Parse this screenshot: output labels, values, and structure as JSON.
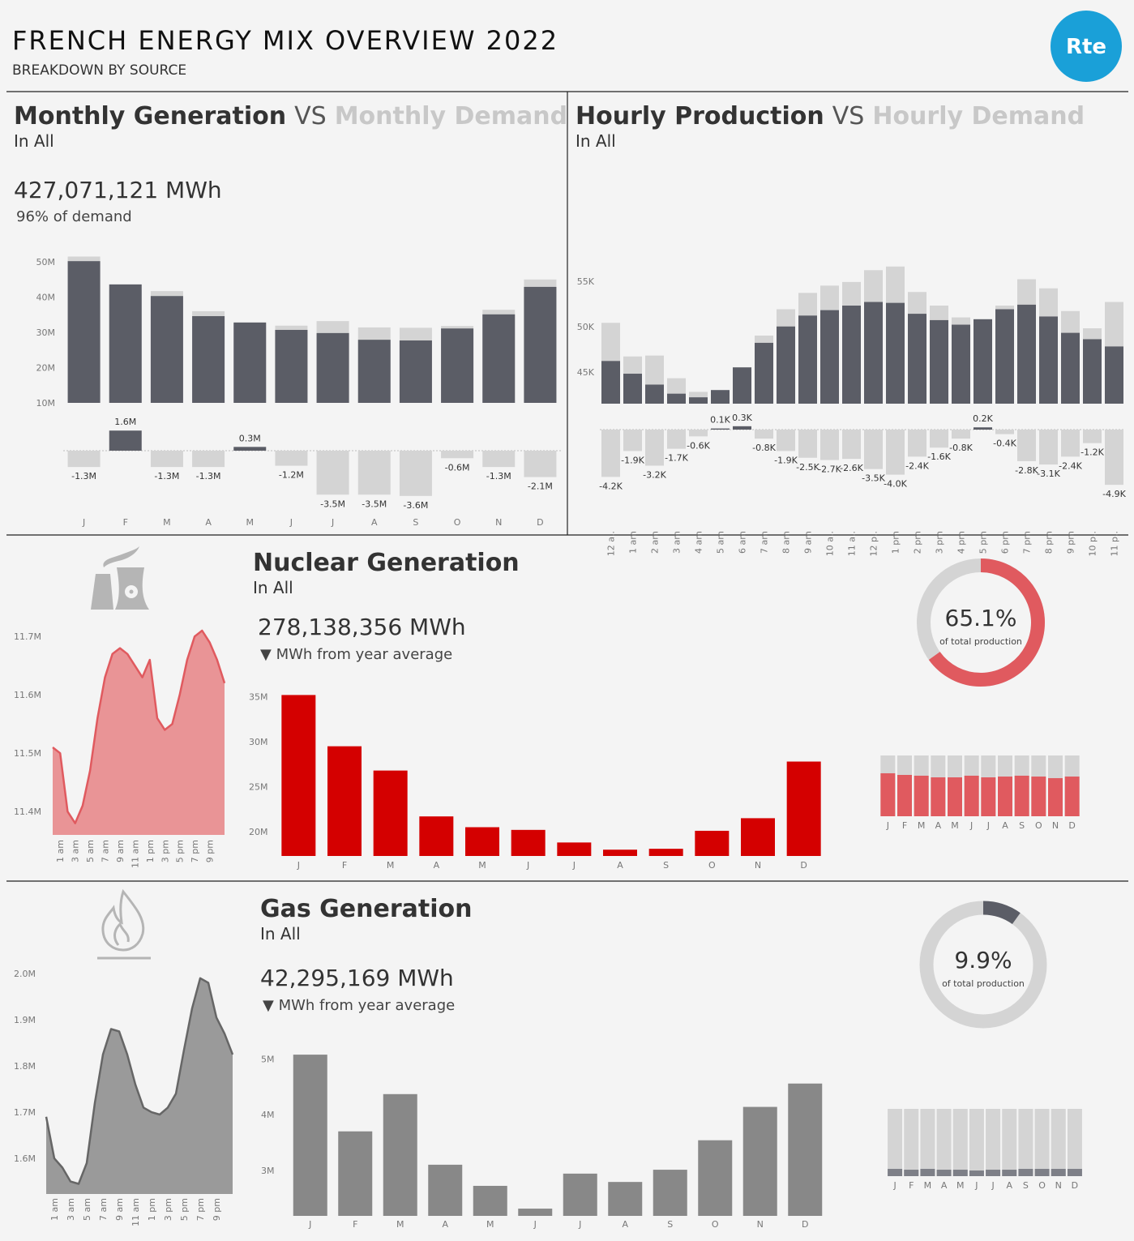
{
  "header": {
    "title": "FRENCH ENERGY MIX OVERVIEW 2022",
    "subtitle": "BREAKDOWN BY SOURCE",
    "logo": "Rte"
  },
  "chart_data": [
    {
      "type": "bar",
      "title_connector": "VS",
      "subtitle": "In All",
      "kpi": "427,071,121 MWh",
      "kpi_note": "96% of demand",
      "categories": [
        "J",
        "F",
        "M",
        "A",
        "M",
        "J",
        "J",
        "A",
        "S",
        "O",
        "N",
        "D"
      ],
      "series": [
        {
          "name": "Monthly Demand",
          "color": "#d4d4d4",
          "values": [
            51.5,
            42.0,
            41.7,
            36.0,
            32.5,
            31.9,
            33.2,
            31.4,
            31.3,
            31.8,
            36.4,
            45.0
          ]
        },
        {
          "name": "Monthly Generation",
          "color": "#5b5d66",
          "values": [
            50.2,
            43.6,
            40.3,
            34.6,
            32.8,
            30.7,
            29.8,
            27.9,
            27.7,
            31.1,
            35.1,
            42.9
          ]
        }
      ],
      "ylim": [
        10,
        53
      ],
      "yticks": [
        {
          "value": 10,
          "label": "10M"
        },
        {
          "value": 20,
          "label": "20M"
        },
        {
          "value": 30,
          "label": "30M"
        },
        {
          "value": 40,
          "label": "40M"
        },
        {
          "value": 50,
          "label": "50M"
        }
      ],
      "difference_values": [
        -1.3,
        1.6,
        -1.3,
        -1.3,
        0.3,
        -1.2,
        -3.5,
        -3.5,
        -3.6,
        -0.6,
        -1.3,
        -2.1
      ],
      "difference_labels": [
        "-1.3M",
        "1.6M",
        "-1.3M",
        "-1.3M",
        "0.3M",
        "-1.2M",
        "-3.5M",
        "-3.5M",
        "-3.6M",
        "-0.6M",
        "-1.3M",
        "-2.1M"
      ],
      "positive_color": "#5b5d66",
      "negative_color": "#d4d4d4"
    },
    {
      "type": "bar",
      "title_connector": "VS",
      "subtitle": "In All",
      "categories": [
        "12 a..",
        "1 am",
        "2 am",
        "3 am",
        "4 am",
        "5 am",
        "6 am",
        "7 am",
        "8 am",
        "9 am",
        "10 a..",
        "11 a..",
        "12 p..",
        "1 pm",
        "2 pm",
        "3 pm",
        "4 pm",
        "5 pm",
        "6 pm",
        "7 pm",
        "8 pm",
        "9 pm",
        "10 p..",
        "11 p.."
      ],
      "series": [
        {
          "name": "Hourly Demand",
          "color": "#d4d4d4",
          "values": [
            50.4,
            46.7,
            46.8,
            44.3,
            42.8,
            42.9,
            45.2,
            49.0,
            51.9,
            53.7,
            54.5,
            54.9,
            56.2,
            56.6,
            53.8,
            52.3,
            51.0,
            50.6,
            52.3,
            55.2,
            54.2,
            51.7,
            49.8,
            52.7
          ]
        },
        {
          "name": "Hourly Production",
          "color": "#5b5d66",
          "values": [
            46.2,
            44.8,
            43.6,
            42.6,
            42.2,
            43.0,
            45.5,
            48.2,
            50.0,
            51.2,
            51.8,
            52.3,
            52.7,
            52.6,
            51.4,
            50.7,
            50.2,
            50.8,
            51.9,
            52.4,
            51.1,
            49.3,
            48.6,
            47.8
          ]
        }
      ],
      "ylim": [
        41.5,
        56.8
      ],
      "yticks": [
        {
          "value": 45,
          "label": "45K"
        },
        {
          "value": 50,
          "label": "50K"
        },
        {
          "value": 55,
          "label": "55K"
        }
      ],
      "difference_values": [
        -4.2,
        -1.9,
        -3.2,
        -1.7,
        -0.6,
        0.1,
        0.3,
        -0.8,
        -1.9,
        -2.5,
        -2.7,
        -2.6,
        -3.5,
        -4.0,
        -2.4,
        -1.6,
        -0.8,
        0.2,
        -0.4,
        -2.8,
        -3.1,
        -2.4,
        -1.2,
        -4.9
      ],
      "difference_labels": [
        "-4.2K",
        "-1.9K",
        "-3.2K",
        "-1.7K",
        "-0.6K",
        "0.1K",
        "0.3K",
        "-0.8K",
        "-1.9K",
        "-2.5K",
        "-2.7K",
        "-2.6K",
        "-3.5K",
        "-4.0K",
        "-2.4K",
        "-1.6K",
        "-0.8K",
        "0.2K",
        "-0.4K",
        "-2.8K",
        "-3.1K",
        "-2.4K",
        "-1.2K",
        "-4.9K"
      ],
      "positive_color": "#5b5d66",
      "negative_color": "#d4d4d4"
    },
    {
      "type": "area",
      "categories": [
        null,
        "1 am",
        null,
        "3 am",
        null,
        "5 am",
        null,
        "7 am",
        null,
        "9 am",
        null,
        "11 am",
        null,
        "1 pm",
        null,
        "3 pm",
        null,
        "5 pm",
        null,
        "7 pm",
        null,
        "9 pm",
        null,
        null
      ],
      "values": [
        11.51,
        11.5,
        11.4,
        11.38,
        11.41,
        11.47,
        11.56,
        11.63,
        11.67,
        11.68,
        11.67,
        11.65,
        11.63,
        11.66,
        11.56,
        11.54,
        11.55,
        11.6,
        11.66,
        11.7,
        11.71,
        11.69,
        11.66,
        11.62
      ],
      "color": "#e05a5f",
      "fill": "#e99496",
      "ylim": [
        11.36,
        11.8
      ],
      "yticks": [
        {
          "value": 11.4,
          "label": "11.4M"
        },
        {
          "value": 11.5,
          "label": "11.5M"
        },
        {
          "value": 11.6,
          "label": "11.6M"
        },
        {
          "value": 11.7,
          "label": "11.7M"
        }
      ]
    },
    {
      "type": "bar",
      "title": "Nuclear Generation",
      "subtitle": "In All",
      "kpi": "278,138,356 MWh",
      "kpi_note": "▼ MWh from year average",
      "categories": [
        "J",
        "F",
        "M",
        "A",
        "M",
        "J",
        "J",
        "A",
        "S",
        "O",
        "N",
        "D"
      ],
      "values": [
        35.2,
        29.5,
        26.8,
        21.7,
        20.5,
        20.2,
        18.8,
        18.0,
        18.1,
        20.1,
        21.5,
        27.8
      ],
      "color": "#d40000",
      "ylim": [
        17.3,
        36.5
      ],
      "yticks": [
        {
          "value": 20,
          "label": "20M"
        },
        {
          "value": 25,
          "label": "25M"
        },
        {
          "value": 30,
          "label": "30M"
        },
        {
          "value": 35,
          "label": "35M"
        }
      ]
    },
    {
      "type": "donut",
      "value": 65.1,
      "value_label": "65.1%",
      "caption": "of total production",
      "color": "#e05a5f",
      "rest_color": "#d4d4d4"
    },
    {
      "type": "share_bar",
      "categories": [
        "J",
        "F",
        "M",
        "A",
        "M",
        "J",
        "J",
        "A",
        "S",
        "O",
        "N",
        "D"
      ],
      "values": [
        70.7,
        68.0,
        66.7,
        64.0,
        64.0,
        66.7,
        64.0,
        65.3,
        66.7,
        65.3,
        62.7,
        65.3
      ],
      "color": "#e05a5f",
      "rest_color": "#d4d4d4"
    },
    {
      "type": "area",
      "categories": [
        null,
        "1 am",
        null,
        "3 am",
        null,
        "5 am",
        null,
        "7 am",
        null,
        "9 am",
        null,
        "11 am",
        null,
        "1 pm",
        null,
        "3 pm",
        null,
        "5 pm",
        null,
        "7 pm",
        null,
        "9 pm",
        null,
        null
      ],
      "values": [
        1.69,
        1.6,
        1.58,
        1.55,
        1.545,
        1.59,
        1.72,
        1.825,
        1.88,
        1.875,
        1.825,
        1.76,
        1.71,
        1.7,
        1.695,
        1.71,
        1.74,
        1.835,
        1.925,
        1.99,
        1.98,
        1.905,
        1.87,
        1.825
      ],
      "color": "#666666",
      "fill": "#9a9a9a",
      "ylim": [
        1.523,
        2.05
      ],
      "yticks": [
        {
          "value": 1.6,
          "label": "1.6M"
        },
        {
          "value": 1.7,
          "label": "1.7M"
        },
        {
          "value": 1.8,
          "label": "1.8M"
        },
        {
          "value": 1.9,
          "label": "1.9M"
        },
        {
          "value": 2.0,
          "label": "2.0M"
        }
      ]
    },
    {
      "type": "bar",
      "title": "Gas Generation",
      "subtitle": "In All",
      "kpi": "42,295,169 MWh",
      "kpi_note": "▼ MWh from year average",
      "categories": [
        "J",
        "F",
        "M",
        "A",
        "M",
        "J",
        "J",
        "A",
        "S",
        "O",
        "N",
        "D"
      ],
      "values": [
        5.08,
        3.7,
        4.37,
        3.1,
        2.72,
        2.31,
        2.94,
        2.79,
        3.01,
        3.54,
        4.14,
        4.56
      ],
      "color": "#888888",
      "ylim": [
        2.18,
        5.3
      ],
      "yticks": [
        {
          "value": 3,
          "label": "3M"
        },
        {
          "value": 4,
          "label": "4M"
        },
        {
          "value": 5,
          "label": "5M"
        }
      ]
    },
    {
      "type": "donut",
      "value": 9.9,
      "value_label": "9.9%",
      "caption": "of total production",
      "color": "#5b5d66",
      "rest_color": "#d4d4d4"
    },
    {
      "type": "share_bar",
      "categories": [
        "J",
        "F",
        "M",
        "A",
        "M",
        "J",
        "J",
        "A",
        "S",
        "O",
        "N",
        "D"
      ],
      "values": [
        10.8,
        9.6,
        10.8,
        9.6,
        9.6,
        8.4,
        9.6,
        9.6,
        10.8,
        10.8,
        10.8,
        10.8
      ],
      "color": "#7d7f87",
      "rest_color": "#d4d4d4"
    }
  ]
}
